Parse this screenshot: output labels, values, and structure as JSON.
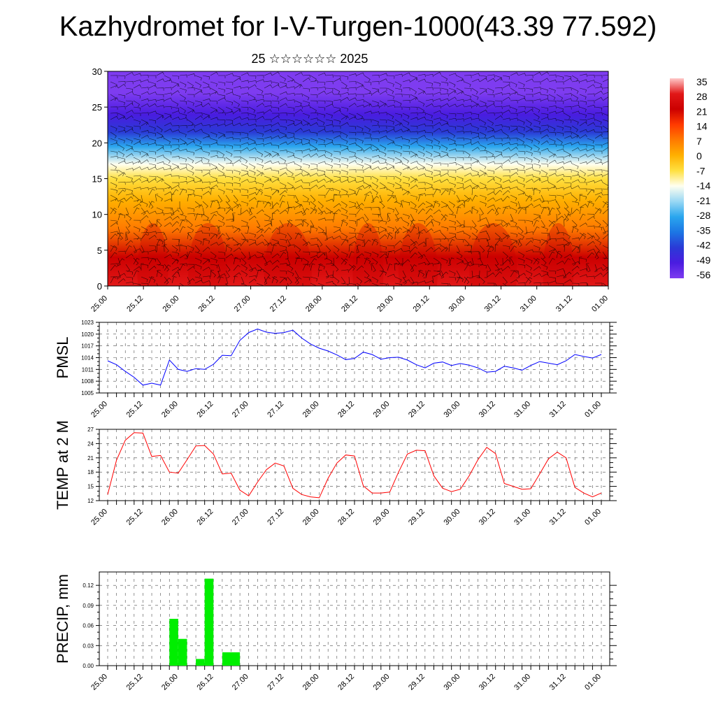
{
  "header": {
    "title": "Kazhydromet for I-V-Turgen-1000(43.39 77.592)",
    "subtitle": "25 ☆☆☆☆☆☆ 2025"
  },
  "time_labels": [
    "25.00",
    "25.12",
    "26.00",
    "26.12",
    "27.00",
    "27.12",
    "28.00",
    "28.12",
    "29.00",
    "29.12",
    "30.00",
    "30.12",
    "31.00",
    "31.12",
    "01.00"
  ],
  "colors": {
    "pmsl_line": "#0000ff",
    "temp_line": "#ff0000",
    "precip_bar": "#00ee00",
    "grid": "#000000",
    "wind_barbs": "#000000"
  },
  "chart_data": [
    {
      "type": "heatmap",
      "name": "cross-section",
      "description_field": "temperature with wind barbs",
      "y_range": [
        0,
        30
      ],
      "y_ticks": [
        0,
        5,
        10,
        15,
        20,
        25,
        30
      ],
      "colorbar": {
        "labels": [
          "35",
          "28",
          "21",
          "14",
          "7",
          "0",
          "-7",
          "-14",
          "-21",
          "-28",
          "-35",
          "-42",
          "-49",
          "-56"
        ],
        "stops": [
          {
            "v": 35,
            "c": "#ffc8c8"
          },
          {
            "v": 28,
            "c": "#e21818"
          },
          {
            "v": 21,
            "c": "#cc0000"
          },
          {
            "v": 14,
            "c": "#ff3a00"
          },
          {
            "v": 7,
            "c": "#ff7a00"
          },
          {
            "v": 0,
            "c": "#ffb000"
          },
          {
            "v": -7,
            "c": "#ffe040"
          },
          {
            "v": -14,
            "c": "#fffff0"
          },
          {
            "v": -21,
            "c": "#9ad8f4"
          },
          {
            "v": -28,
            "c": "#2aa6ee"
          },
          {
            "v": -35,
            "c": "#1c76e4"
          },
          {
            "v": -42,
            "c": "#2a3ad6"
          },
          {
            "v": -49,
            "c": "#4a1ce0"
          },
          {
            "v": -56,
            "c": "#7e3cf0"
          }
        ]
      },
      "levels": [
        {
          "y": 0,
          "v": 25
        },
        {
          "y": 4,
          "v": 18
        },
        {
          "y": 8,
          "v": 9
        },
        {
          "y": 12,
          "v": 2
        },
        {
          "y": 15,
          "v": -8
        },
        {
          "y": 17,
          "v": -17
        },
        {
          "y": 19.5,
          "v": -30
        },
        {
          "y": 21.5,
          "v": -40
        },
        {
          "y": 24,
          "v": -50
        },
        {
          "y": 27,
          "v": -56
        },
        {
          "y": 30,
          "v": -58
        }
      ]
    },
    {
      "type": "line",
      "name": "PMSL",
      "ylabel": "PMSL",
      "ylim": [
        1005,
        1023
      ],
      "y_ticks": [
        1005,
        1008,
        1011,
        1014,
        1017,
        1020,
        1023
      ],
      "x_range": [
        0,
        48
      ],
      "values": [
        1013.2,
        1012.2,
        1010.5,
        1009,
        1007,
        1007.5,
        1007,
        1013.4,
        1011,
        1010.5,
        1011.2,
        1011,
        1012.3,
        1014.6,
        1014.5,
        1018.4,
        1020.4,
        1021.3,
        1020.5,
        1020.2,
        1020.4,
        1021,
        1019,
        1017.5,
        1016.4,
        1015.7,
        1014.7,
        1013.5,
        1013.8,
        1015.4,
        1014.8,
        1013.6,
        1014,
        1014.1,
        1013.4,
        1012.2,
        1011.4,
        1012.6,
        1012.9,
        1012,
        1012.5,
        1012.1,
        1011.4,
        1010.3,
        1010.5,
        1011.8,
        1011.4,
        1010.8,
        1012,
        1013,
        1012.6,
        1012.2,
        1013.2,
        1014.8,
        1014.3,
        1013.9,
        1014.8
      ]
    },
    {
      "type": "line",
      "name": "TEMP at 2 M",
      "ylabel": "TEMP at 2 M",
      "ylim": [
        12,
        27
      ],
      "y_ticks": [
        12,
        15,
        18,
        21,
        24,
        27
      ],
      "values": [
        13.3,
        20.5,
        24.7,
        26.3,
        26.2,
        21.3,
        21.5,
        18,
        17.8,
        20.6,
        23.5,
        23.6,
        21.8,
        17.6,
        17.8,
        14.2,
        13,
        15.9,
        18.5,
        19.9,
        19.3,
        14.6,
        13.3,
        12.8,
        12.6,
        16.7,
        19.9,
        21.6,
        21.4,
        15.1,
        13.6,
        13.6,
        13.8,
        18,
        21.8,
        22.6,
        22.5,
        17.2,
        14.6,
        13.9,
        14.4,
        17.2,
        20.6,
        23.2,
        21.9,
        15.6,
        15,
        14.4,
        14.5,
        17.6,
        20.8,
        22.2,
        21,
        14.8,
        13.6,
        12.8,
        13.6
      ]
    },
    {
      "type": "bar",
      "name": "PRECIP, mm",
      "ylabel": "PRECIP, mm",
      "ylim": [
        0,
        0.14
      ],
      "y_ticks": [
        0.0,
        0.03,
        0.06,
        0.09,
        0.12
      ],
      "tick_labels": [
        "0.00",
        "0.03",
        "0.06",
        "0.09",
        "0.12"
      ],
      "bars": [
        {
          "x": 7,
          "value": 0.07
        },
        {
          "x": 8,
          "value": 0.04
        },
        {
          "x": 10,
          "value": 0.01
        },
        {
          "x": 11,
          "value": 0.13
        },
        {
          "x": 13,
          "value": 0.02
        },
        {
          "x": 14,
          "value": 0.02
        }
      ]
    }
  ]
}
